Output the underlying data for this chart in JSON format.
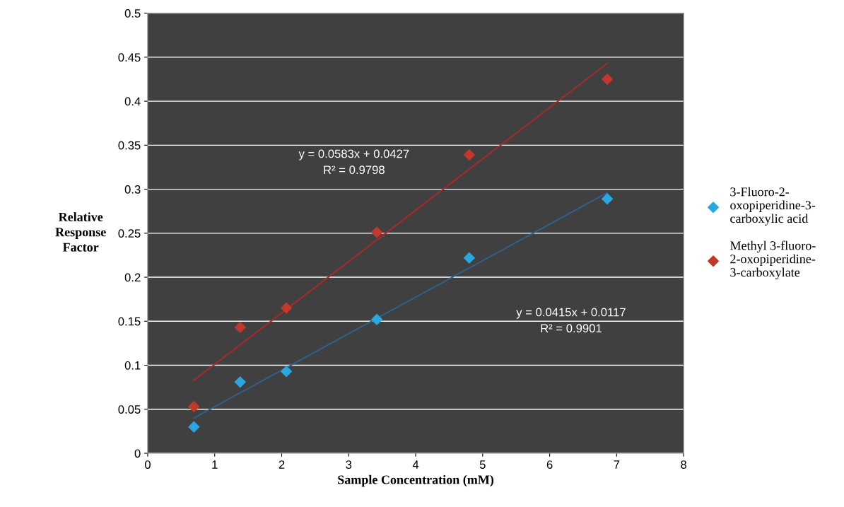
{
  "chart_data": {
    "type": "scatter",
    "xlabel": "Sample Concentration (mM)",
    "ylabel": "Relative Response Factor",
    "xlim": [
      0,
      8
    ],
    "xticks": [
      0,
      1,
      2,
      3,
      4,
      5,
      6,
      7,
      8
    ],
    "ylim": [
      0,
      0.5
    ],
    "yticks": [
      0,
      0.05,
      0.1,
      0.15,
      0.2,
      0.25,
      0.3,
      0.35,
      0.4,
      0.45,
      0.5
    ],
    "grid": "y",
    "legend": "right",
    "marker": "diamond",
    "series": [
      {
        "name": "3-Fluoro-2-oxopiperidine-3-carboxylic acid",
        "color": "#2aa6e0",
        "x": [
          0.69,
          1.38,
          2.07,
          3.42,
          4.8,
          6.86
        ],
        "values": [
          0.03,
          0.081,
          0.093,
          0.152,
          0.222,
          0.289
        ]
      },
      {
        "name": "Methyl 3-fluoro-2-oxopiperidine-3-carboxylate",
        "color": "#c0392b",
        "x": [
          0.69,
          1.38,
          2.07,
          3.42,
          4.8,
          6.86
        ],
        "values": [
          0.053,
          0.143,
          0.165,
          0.251,
          0.339,
          0.425
        ]
      },
      {
        "type": "line",
        "color": "#2f5f8a",
        "marker": "none",
        "x": [
          0.69,
          6.86
        ],
        "values": [
          0.04,
          0.296
        ]
      },
      {
        "type": "line",
        "color": "#a52a2a",
        "marker": "none",
        "x": [
          0.69,
          6.86
        ],
        "values": [
          0.083,
          0.443
        ]
      }
    ],
    "annotations": [
      "y = 0.0583x + 0.0427\nR² = 0.9798",
      "y = 0.0415x + 0.0117\nR² = 0.9901"
    ]
  }
}
